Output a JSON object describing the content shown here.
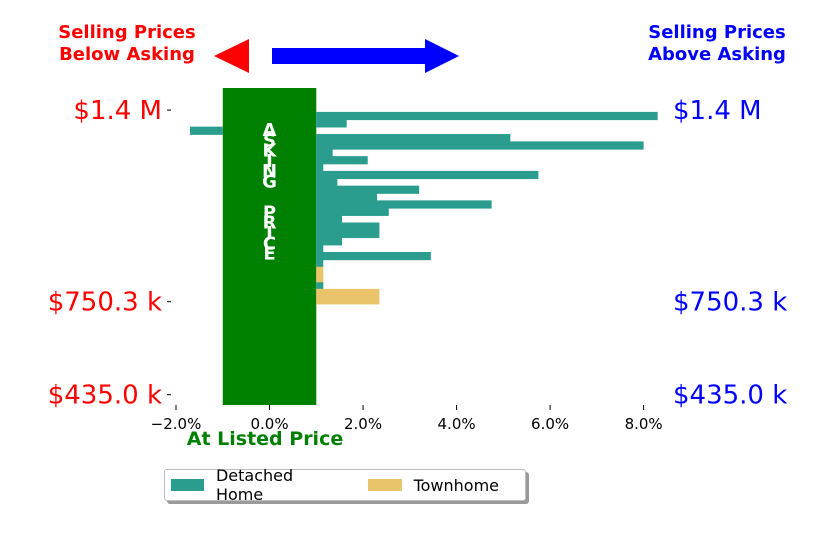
{
  "chart_data": {
    "type": "bar",
    "orientation": "horizontal",
    "x_ticks": [
      -2,
      0,
      2,
      4,
      6,
      8
    ],
    "x_tick_labels": [
      "−2.0%",
      "0.0%",
      "2.0%",
      "4.0%",
      "6.0%",
      "8.0%"
    ],
    "xlim": [
      -2.0,
      8.5
    ],
    "ylim": [
      400000,
      1475000
    ],
    "y_ticks": [
      435000,
      750300,
      1400000
    ],
    "y_tick_labels": [
      "$435.0 k",
      "$750.3 k",
      "$1.4 M"
    ],
    "band_label": "ASKING  PRICE",
    "band_range": [
      -1.0,
      1.0
    ],
    "xlabel_bottom": "At Listed Price",
    "header_left": [
      "Selling Prices",
      "Below Asking"
    ],
    "header_right": [
      "Selling Prices",
      "Above Asking"
    ],
    "series": [
      {
        "name": "Detached Home",
        "color": "#2a9d8f",
        "points": [
          {
            "y": 1380000,
            "x": 8.3
          },
          {
            "y": 1355000,
            "x": 1.65
          },
          {
            "y": 1330000,
            "x": -1.7
          },
          {
            "y": 1305000,
            "x": 5.15
          },
          {
            "y": 1280000,
            "x": 8.0
          },
          {
            "y": 1255000,
            "x": 1.35
          },
          {
            "y": 1230000,
            "x": 2.1
          },
          {
            "y": 1205000,
            "x": 1.15
          },
          {
            "y": 1180000,
            "x": 5.75
          },
          {
            "y": 1155000,
            "x": 1.45
          },
          {
            "y": 1130000,
            "x": 3.2
          },
          {
            "y": 1105000,
            "x": 2.3
          },
          {
            "y": 1080000,
            "x": 4.75
          },
          {
            "y": 1055000,
            "x": 2.55
          },
          {
            "y": 1030000,
            "x": 1.55
          },
          {
            "y": 1005000,
            "x": 2.35
          },
          {
            "y": 980000,
            "x": 2.35
          },
          {
            "y": 955000,
            "x": 1.55
          },
          {
            "y": 930000,
            "x": 1.15
          },
          {
            "y": 905000,
            "x": 3.45
          },
          {
            "y": 880000,
            "x": 1.15
          },
          {
            "y": 805000,
            "x": 1.15
          }
        ]
      },
      {
        "name": "Townhome",
        "color": "#e9c46a",
        "points": [
          {
            "y": 855000,
            "x": 1.15
          },
          {
            "y": 830000,
            "x": 1.15
          },
          {
            "y": 780000,
            "x": 2.35
          },
          {
            "y": 755000,
            "x": 2.35
          }
        ]
      }
    ],
    "legend_position": "bottom-center",
    "grid": false
  }
}
